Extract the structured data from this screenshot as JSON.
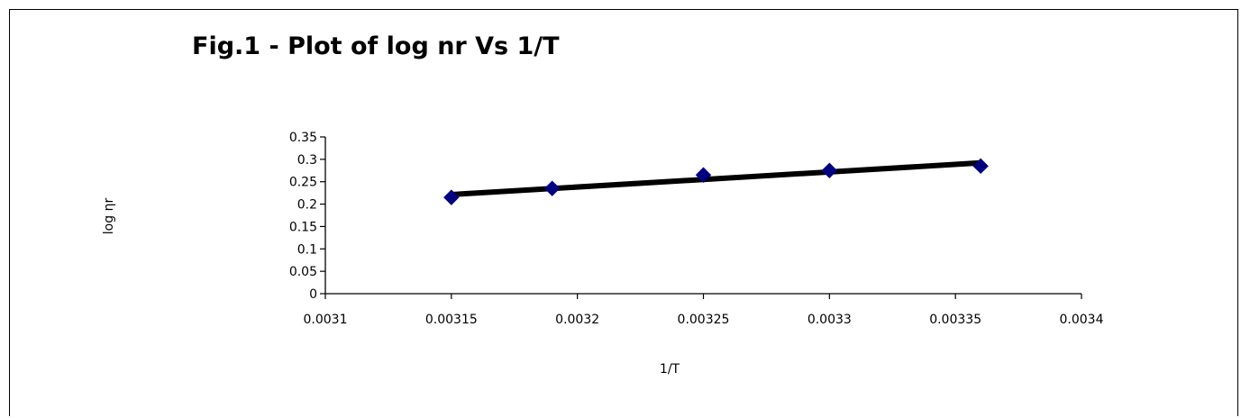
{
  "chart_data": {
    "type": "scatter",
    "title": "Fig.1 - Plot of log nr Vs 1/T",
    "xlabel": "1/T",
    "ylabel": "log ηr",
    "xlim": [
      0.0031,
      0.0034
    ],
    "ylim": [
      0,
      0.35
    ],
    "x_ticks": [
      "0.0031",
      "0.00315",
      "0.0032",
      "0.00325",
      "0.0033",
      "0.00335",
      "0.0034"
    ],
    "y_ticks": [
      "0",
      "0.05",
      "0.1",
      "0.15",
      "0.2",
      "0.25",
      "0.3",
      "0.35"
    ],
    "series": [
      {
        "x": [
          0.00315,
          0.00319,
          0.00325,
          0.0033,
          0.00336
        ],
        "y": [
          0.215,
          0.235,
          0.265,
          0.275,
          0.285
        ],
        "marker": "diamond",
        "color": "#000080",
        "trendline": {
          "type": "linear",
          "color": "#000000"
        }
      }
    ],
    "grid": false,
    "legend": "none"
  }
}
